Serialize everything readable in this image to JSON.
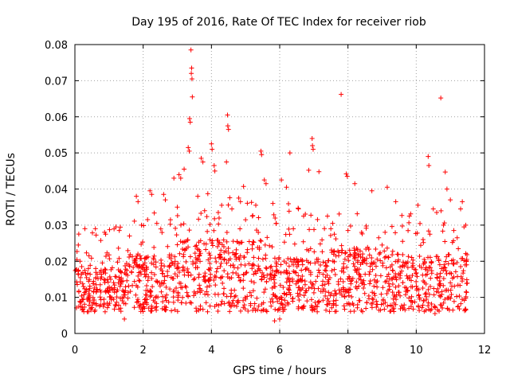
{
  "chart_data": {
    "type": "scatter",
    "title": "Day 195 of 2016, Rate Of TEC Index for receiver riob",
    "xlabel": "GPS time / hours",
    "ylabel": "ROTI / TECUs",
    "xlim": [
      0,
      12
    ],
    "ylim": [
      0,
      0.08
    ],
    "x_ticks": [
      "0",
      "2",
      "4",
      "6",
      "8",
      "10",
      "12"
    ],
    "y_ticks": [
      "0",
      "0.01",
      "0.02",
      "0.03",
      "0.04",
      "0.05",
      "0.06",
      "0.07",
      "0.08"
    ],
    "grid": true,
    "marker": "+",
    "color": "#ff0000",
    "series": [
      {
        "name": "ROTI",
        "points": [
          [
            3.4,
            0.0785
          ],
          [
            3.42,
            0.0735
          ],
          [
            3.41,
            0.072
          ],
          [
            3.43,
            0.0705
          ],
          [
            3.44,
            0.0655
          ],
          [
            3.36,
            0.0595
          ],
          [
            3.38,
            0.0585
          ],
          [
            3.32,
            0.0515
          ],
          [
            3.35,
            0.0505
          ],
          [
            4.47,
            0.0605
          ],
          [
            4.48,
            0.0575
          ],
          [
            4.5,
            0.0565
          ],
          [
            4.44,
            0.0475
          ],
          [
            7.8,
            0.0662
          ],
          [
            10.72,
            0.0652
          ],
          [
            10.35,
            0.049
          ],
          [
            10.37,
            0.0465
          ],
          [
            5.45,
            0.0505
          ],
          [
            5.47,
            0.0495
          ],
          [
            6.3,
            0.05
          ],
          [
            6.95,
            0.054
          ],
          [
            6.96,
            0.052
          ],
          [
            6.98,
            0.051
          ],
          [
            4.0,
            0.0525
          ],
          [
            4.02,
            0.051
          ],
          [
            3.7,
            0.0485
          ],
          [
            3.75,
            0.0475
          ],
          [
            4.08,
            0.0465
          ],
          [
            4.1,
            0.045
          ],
          [
            6.85,
            0.0452
          ],
          [
            7.15,
            0.0448
          ],
          [
            10.85,
            0.0447
          ],
          [
            10.9,
            0.04
          ],
          [
            3.05,
            0.044
          ],
          [
            3.1,
            0.043
          ],
          [
            3.2,
            0.0455
          ],
          [
            2.9,
            0.043
          ],
          [
            5.55,
            0.0425
          ],
          [
            5.6,
            0.0415
          ],
          [
            6.05,
            0.0425
          ],
          [
            6.2,
            0.0405
          ],
          [
            7.95,
            0.0442
          ],
          [
            7.98,
            0.0435
          ],
          [
            8.2,
            0.0415
          ],
          [
            9.15,
            0.0405
          ],
          [
            8.7,
            0.0395
          ],
          [
            9.4,
            0.0365
          ],
          [
            10.05,
            0.0355
          ],
          [
            11.0,
            0.037
          ],
          [
            11.35,
            0.0365
          ],
          [
            11.3,
            0.0345
          ],
          [
            2.2,
            0.0395
          ],
          [
            2.25,
            0.0385
          ],
          [
            1.8,
            0.038
          ],
          [
            1.85,
            0.0365
          ],
          [
            2.6,
            0.0385
          ],
          [
            2.65,
            0.037
          ],
          [
            4.8,
            0.0375
          ],
          [
            4.85,
            0.0365
          ],
          [
            5.3,
            0.0355
          ],
          [
            5.8,
            0.036
          ],
          [
            6.55,
            0.0345
          ],
          [
            6.7,
            0.0325
          ],
          [
            7.4,
            0.0325
          ],
          [
            7.55,
            0.0305
          ],
          [
            9.8,
            0.0325
          ],
          [
            10.5,
            0.0345
          ],
          [
            10.6,
            0.0335
          ],
          [
            10.8,
            0.03
          ],
          [
            11.1,
            0.0285
          ],
          [
            11.4,
            0.0295
          ],
          [
            11.45,
            0.03
          ],
          [
            1.2,
            0.0295
          ],
          [
            1.3,
            0.0285
          ],
          [
            0.9,
            0.0275
          ],
          [
            0.6,
            0.029
          ],
          [
            0.1,
            0.0245
          ],
          [
            0.15,
            0.02
          ],
          [
            0.2,
            0.0185
          ],
          [
            1.6,
            0.027
          ],
          [
            1.95,
            0.03
          ],
          [
            2.4,
            0.0305
          ],
          [
            2.8,
            0.0315
          ],
          [
            3.0,
            0.035
          ],
          [
            3.6,
            0.038
          ],
          [
            3.8,
            0.034
          ],
          [
            4.2,
            0.0335
          ],
          [
            4.3,
            0.0355
          ],
          [
            4.6,
            0.0345
          ],
          [
            5.0,
            0.0315
          ],
          [
            5.2,
            0.0325
          ],
          [
            5.9,
            0.0305
          ],
          [
            6.4,
            0.029
          ],
          [
            7.6,
            0.0275
          ],
          [
            8.0,
            0.0285
          ],
          [
            8.4,
            0.028
          ],
          [
            8.9,
            0.0265
          ],
          [
            9.0,
            0.0245
          ],
          [
            9.6,
            0.0255
          ],
          [
            10.2,
            0.026
          ],
          [
            10.4,
            0.0275
          ],
          [
            11.2,
            0.0265
          ],
          [
            11.48,
            0.0205
          ],
          [
            7.1,
            0.006
          ],
          [
            6.0,
            0.004
          ],
          [
            5.85,
            0.0035
          ],
          [
            1.45,
            0.004
          ],
          [
            10.55,
            0.0055
          ],
          [
            11.45,
            0.0065
          ],
          [
            4.15,
            0.008
          ],
          [
            0.25,
            0.0095
          ],
          [
            0.85,
            0.008
          ],
          [
            3.55,
            0.007
          ],
          [
            9.85,
            0.0075
          ],
          [
            8.55,
            0.0085
          ],
          [
            2.1,
            0.0085
          ],
          [
            6.8,
            0.009
          ]
        ]
      }
    ]
  }
}
